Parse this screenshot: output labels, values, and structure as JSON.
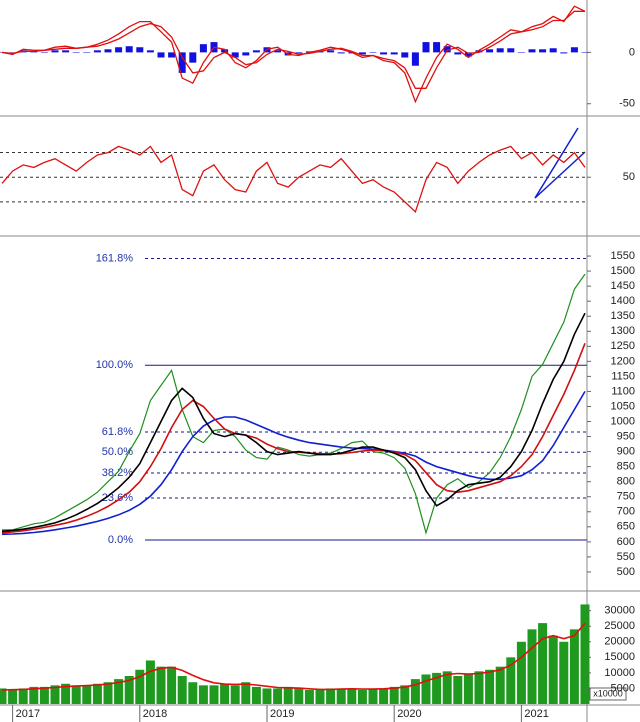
{
  "chart_data": [
    {
      "type": "macd",
      "ylim": [
        -60,
        51
      ],
      "yticks": [
        0,
        -50
      ],
      "series": [
        {
          "color": "#e01010",
          "values": [
            0,
            -2,
            3,
            2,
            2,
            5,
            6,
            4,
            5,
            8,
            12,
            18,
            25,
            30,
            30,
            20,
            10,
            -25,
            -30,
            -10,
            5,
            3,
            -10,
            -15,
            -8,
            3,
            5,
            -2,
            -3,
            0,
            2,
            5,
            3,
            0,
            -5,
            -3,
            -8,
            -10,
            -20,
            -48,
            -25,
            -5,
            8,
            3,
            -5,
            2,
            8,
            15,
            22,
            20,
            25,
            28,
            35,
            30,
            45,
            40
          ]
        },
        {
          "color": "#e01010",
          "values": [
            0,
            -1,
            1,
            1,
            2,
            3,
            4,
            4,
            5,
            6,
            9,
            13,
            19,
            25,
            28,
            25,
            15,
            -5,
            -20,
            -18,
            -5,
            0,
            -5,
            -12,
            -10,
            -2,
            3,
            1,
            -2,
            -1,
            1,
            3,
            4,
            1,
            -3,
            -3,
            -6,
            -8,
            -15,
            -35,
            -35,
            -15,
            2,
            5,
            -1,
            0,
            5,
            11,
            18,
            20,
            22,
            25,
            31,
            31,
            40,
            40
          ]
        }
      ],
      "histogram": {
        "color": "#1010e0",
        "values": [
          0,
          -1,
          2,
          1,
          0,
          2,
          2,
          0,
          0,
          2,
          3,
          5,
          6,
          5,
          2,
          -5,
          -5,
          -20,
          -10,
          8,
          10,
          3,
          -5,
          -3,
          2,
          5,
          2,
          -3,
          -1,
          1,
          1,
          2,
          -1,
          -1,
          -2,
          0,
          -2,
          -2,
          -5,
          -13,
          10,
          10,
          6,
          -2,
          -4,
          2,
          3,
          4,
          4,
          0,
          3,
          3,
          4,
          -1,
          5,
          0
        ]
      }
    },
    {
      "type": "rsi",
      "ylim": [
        4,
        98
      ],
      "yticks": [
        50
      ],
      "levels": [
        30,
        50,
        70
      ],
      "series": [
        {
          "color": "#e01010",
          "values": [
            45,
            55,
            60,
            58,
            62,
            65,
            60,
            55,
            62,
            68,
            70,
            75,
            72,
            68,
            75,
            62,
            68,
            40,
            35,
            55,
            60,
            48,
            40,
            38,
            55,
            62,
            45,
            42,
            50,
            55,
            60,
            58,
            65,
            55,
            45,
            48,
            42,
            38,
            30,
            22,
            48,
            62,
            58,
            45,
            55,
            62,
            68,
            72,
            75,
            65,
            70,
            60,
            68,
            62,
            70,
            58
          ]
        }
      ]
    },
    {
      "type": "price",
      "ylim": [
        440,
        1610
      ],
      "yticks": [
        500,
        550,
        600,
        650,
        700,
        750,
        800,
        850,
        900,
        950,
        1000,
        1050,
        1100,
        1150,
        1200,
        1250,
        1300,
        1350,
        1400,
        1450,
        1500,
        1550
      ],
      "fib_levels": [
        {
          "label": "161.8%",
          "value": 1542,
          "style": "dashed"
        },
        {
          "label": "100.0%",
          "value": 1187,
          "style": "solid"
        },
        {
          "label": "61.8%",
          "value": 965,
          "style": "dashed"
        },
        {
          "label": "50.0%",
          "value": 898,
          "style": "dashed"
        },
        {
          "label": "38.2%",
          "value": 829,
          "style": "dashed"
        },
        {
          "label": "23.6%",
          "value": 746,
          "style": "dashed"
        },
        {
          "label": "0.0%",
          "value": 606,
          "style": "solid"
        }
      ],
      "series": [
        {
          "color": "#1f8f1f",
          "values": [
            640,
            640,
            650,
            660,
            665,
            680,
            700,
            720,
            740,
            765,
            800,
            835,
            900,
            960,
            1070,
            1120,
            1170,
            1040,
            950,
            930,
            970,
            975,
            950,
            905,
            880,
            875,
            915,
            905,
            890,
            885,
            890,
            895,
            910,
            930,
            935,
            900,
            895,
            880,
            845,
            760,
            630,
            745,
            790,
            810,
            780,
            800,
            830,
            880,
            950,
            1040,
            1150,
            1190,
            1260,
            1330,
            1440,
            1490
          ]
        },
        {
          "color": "#1020d0",
          "values": [
            625,
            626,
            628,
            631,
            635,
            640,
            646,
            652,
            660,
            668,
            678,
            690,
            705,
            725,
            752,
            790,
            840,
            900,
            950,
            985,
            1005,
            1015,
            1015,
            1005,
            990,
            975,
            960,
            948,
            938,
            930,
            925,
            920,
            915,
            912,
            910,
            908,
            905,
            900,
            895,
            885,
            865,
            850,
            840,
            830,
            820,
            812,
            808,
            808,
            812,
            820,
            840,
            870,
            920,
            980,
            1040,
            1100
          ]
        },
        {
          "color": "#d01010",
          "values": [
            630,
            633,
            637,
            642,
            648,
            655,
            662,
            672,
            685,
            700,
            718,
            740,
            765,
            800,
            850,
            910,
            980,
            1040,
            1070,
            1050,
            1010,
            975,
            960,
            955,
            945,
            925,
            910,
            900,
            898,
            895,
            893,
            892,
            893,
            897,
            902,
            905,
            903,
            898,
            890,
            870,
            830,
            790,
            770,
            765,
            770,
            780,
            790,
            800,
            820,
            850,
            890,
            950,
            1020,
            1090,
            1170,
            1260
          ]
        },
        {
          "color": "#000000",
          "values": [
            635,
            638,
            642,
            648,
            655,
            663,
            675,
            690,
            708,
            728,
            752,
            780,
            815,
            860,
            930,
            1000,
            1070,
            1110,
            1080,
            1010,
            960,
            950,
            960,
            955,
            930,
            900,
            890,
            895,
            900,
            895,
            890,
            890,
            895,
            905,
            915,
            915,
            905,
            895,
            880,
            840,
            770,
            720,
            740,
            770,
            790,
            795,
            800,
            815,
            850,
            900,
            970,
            1060,
            1140,
            1200,
            1290,
            1360
          ]
        }
      ]
    },
    {
      "type": "bar",
      "ylim": [
        0,
        36000
      ],
      "yticks": [
        5000,
        10000,
        15000,
        20000,
        25000,
        30000
      ],
      "unit_label": "x10000",
      "color": "#1f9a1f",
      "categories": [
        null,
        "2017",
        null,
        null,
        null,
        null,
        null,
        null,
        null,
        null,
        null,
        null,
        null,
        "2018",
        null,
        null,
        null,
        null,
        null,
        null,
        null,
        null,
        null,
        null,
        null,
        "2019",
        null,
        null,
        null,
        null,
        null,
        null,
        null,
        null,
        null,
        null,
        null,
        "2020",
        null,
        null,
        null,
        null,
        null,
        null,
        null,
        null,
        null,
        null,
        null,
        "2021",
        null,
        null,
        null,
        null,
        null,
        null
      ],
      "values": [
        5000,
        4500,
        5000,
        5500,
        5500,
        6000,
        6500,
        6000,
        6000,
        6500,
        7000,
        8000,
        9000,
        11000,
        14000,
        12000,
        12000,
        9000,
        7000,
        6000,
        6000,
        6500,
        6000,
        7000,
        5500,
        5000,
        5000,
        5500,
        5000,
        4500,
        4500,
        5000,
        5000,
        5000,
        4500,
        5000,
        5000,
        5500,
        6000,
        8000,
        9500,
        10000,
        10500,
        9000,
        9500,
        10500,
        11000,
        12000,
        15000,
        20000,
        24000,
        26000,
        22000,
        20000,
        24000,
        32000
      ],
      "ma": {
        "color": "#e01010",
        "values": [
          4500,
          4600,
          4700,
          4900,
          5100,
          5300,
          5600,
          5800,
          5900,
          6100,
          6400,
          6900,
          7600,
          8800,
          10500,
          11500,
          11800,
          10800,
          9200,
          7800,
          6800,
          6400,
          6300,
          6400,
          6100,
          5700,
          5300,
          5200,
          5100,
          4900,
          4700,
          4700,
          4800,
          4900,
          4800,
          4800,
          4900,
          5100,
          5400,
          6200,
          7400,
          8500,
          9500,
          9800,
          9600,
          9800,
          10300,
          11000,
          12500,
          15000,
          18000,
          21000,
          22000,
          21000,
          22000,
          26000
        ]
      }
    }
  ]
}
